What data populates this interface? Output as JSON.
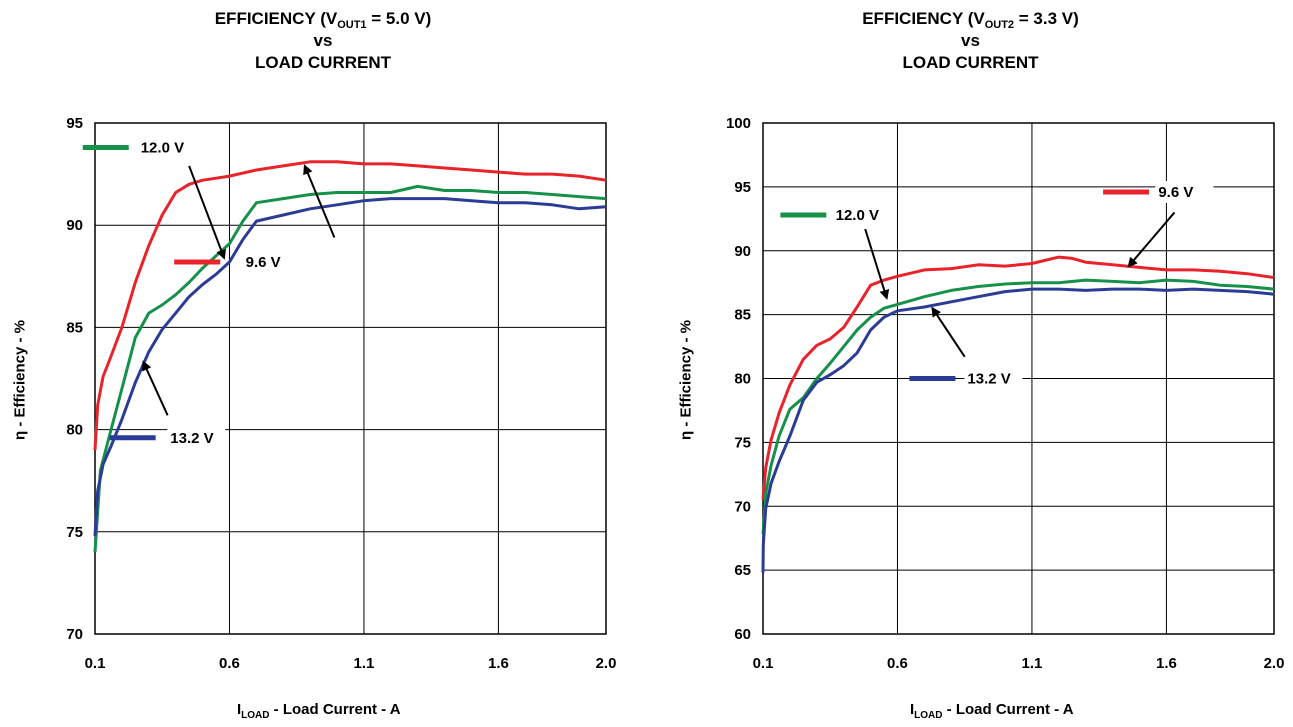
{
  "chart_data": [
    {
      "type": "line",
      "title_parts": [
        "EFFICIENCY (V",
        "OUT1",
        " = 5.0 V)"
      ],
      "title_line2": "vs",
      "title_line3": "LOAD CURRENT",
      "ylabel": "η - Efficiency - %",
      "xlabel_main": "I",
      "xlabel_sub": "LOAD",
      "xlabel_rest": " - Load Current - A",
      "xlim": [
        0.1,
        2.0
      ],
      "ylim": [
        70,
        95
      ],
      "x_ticks": [
        0.1,
        0.6,
        1.1,
        1.6,
        2.0
      ],
      "x_tick_labels": [
        "0.1",
        "0.6",
        "1.1",
        "1.6",
        "2.0"
      ],
      "y_ticks": [
        70,
        75,
        80,
        85,
        90,
        95
      ],
      "y_tick_labels": [
        "70",
        "75",
        "80",
        "85",
        "90",
        "95"
      ],
      "grid": true,
      "series": [
        {
          "name": "9.6 V",
          "color": "#e8232a",
          "x": [
            0.1,
            0.11,
            0.13,
            0.16,
            0.2,
            0.25,
            0.3,
            0.35,
            0.4,
            0.45,
            0.5,
            0.55,
            0.6,
            0.7,
            0.8,
            0.9,
            1.0,
            1.1,
            1.2,
            1.3,
            1.4,
            1.5,
            1.6,
            1.7,
            1.8,
            1.9,
            2.0
          ],
          "y": [
            79.0,
            81.2,
            82.6,
            83.6,
            85.0,
            87.2,
            89.0,
            90.5,
            91.6,
            92.0,
            92.2,
            92.3,
            92.4,
            92.7,
            92.9,
            93.1,
            93.1,
            93.0,
            93.0,
            92.9,
            92.8,
            92.7,
            92.6,
            92.5,
            92.5,
            92.4,
            92.2
          ]
        },
        {
          "name": "12.0 V",
          "color": "#16914a",
          "x": [
            0.1,
            0.12,
            0.15,
            0.2,
            0.25,
            0.3,
            0.35,
            0.4,
            0.45,
            0.5,
            0.55,
            0.6,
            0.65,
            0.7,
            0.8,
            0.9,
            1.0,
            1.1,
            1.2,
            1.3,
            1.4,
            1.5,
            1.6,
            1.7,
            1.8,
            1.9,
            2.0
          ],
          "y": [
            74.0,
            78.0,
            79.5,
            82.0,
            84.5,
            85.7,
            86.1,
            86.6,
            87.2,
            87.9,
            88.5,
            89.1,
            90.2,
            91.1,
            91.3,
            91.5,
            91.6,
            91.6,
            91.6,
            91.9,
            91.7,
            91.7,
            91.6,
            91.6,
            91.5,
            91.4,
            91.3
          ]
        },
        {
          "name": "13.2 V",
          "color": "#2b3c96",
          "x": [
            0.1,
            0.11,
            0.13,
            0.16,
            0.2,
            0.25,
            0.3,
            0.35,
            0.4,
            0.45,
            0.5,
            0.55,
            0.6,
            0.65,
            0.7,
            0.8,
            0.9,
            1.0,
            1.1,
            1.2,
            1.3,
            1.4,
            1.5,
            1.6,
            1.7,
            1.8,
            1.9,
            2.0
          ],
          "y": [
            74.8,
            77.0,
            78.3,
            79.2,
            80.5,
            82.3,
            83.8,
            84.9,
            85.7,
            86.5,
            87.1,
            87.6,
            88.2,
            89.3,
            90.2,
            90.5,
            90.8,
            91.0,
            91.2,
            91.3,
            91.3,
            91.3,
            91.2,
            91.1,
            91.1,
            91.0,
            90.8,
            90.9
          ]
        }
      ],
      "annotations": [
        {
          "text": "12.0 V",
          "series": 1,
          "swatch": [
            0.14,
            93.8
          ],
          "label_at": [
            0.27,
            93.8
          ],
          "arrow_from": [
            0.45,
            92.9
          ],
          "arrow_to": [
            0.58,
            88.4
          ]
        },
        {
          "text": "9.6 V",
          "series": 0,
          "swatch": [
            0.48,
            88.2
          ],
          "label_at": [
            0.66,
            88.2
          ],
          "arrow_from": [
            0.99,
            89.4
          ],
          "arrow_to": [
            0.88,
            92.9
          ]
        },
        {
          "text": "13.2 V",
          "series": 2,
          "swatch": [
            0.24,
            79.6
          ],
          "label_at": [
            0.38,
            79.6
          ],
          "arrow_from": [
            0.37,
            80.7
          ],
          "arrow_to": [
            0.28,
            83.3
          ]
        }
      ]
    },
    {
      "type": "line",
      "title_parts": [
        "EFFICIENCY (V",
        "OUT2",
        " = 3.3 V)"
      ],
      "title_line2": "vs",
      "title_line3": "LOAD CURRENT",
      "ylabel": "η - Efficiency - %",
      "xlabel_main": "I",
      "xlabel_sub": "LOAD",
      "xlabel_rest": " - Load Current - A",
      "xlim": [
        0.1,
        2.0
      ],
      "ylim": [
        60,
        100
      ],
      "x_ticks": [
        0.1,
        0.6,
        1.1,
        1.6,
        2.0
      ],
      "x_tick_labels": [
        "0.1",
        "0.6",
        "1.1",
        "1.6",
        "2.0"
      ],
      "y_ticks": [
        60,
        65,
        70,
        75,
        80,
        85,
        90,
        95,
        100
      ],
      "y_tick_labels": [
        "60",
        "65",
        "70",
        "75",
        "80",
        "85",
        "90",
        "95",
        "100"
      ],
      "grid": true,
      "series": [
        {
          "name": "9.6 V",
          "color": "#e8232a",
          "x": [
            0.1,
            0.11,
            0.13,
            0.16,
            0.2,
            0.25,
            0.3,
            0.35,
            0.4,
            0.45,
            0.5,
            0.55,
            0.6,
            0.7,
            0.8,
            0.9,
            1.0,
            1.1,
            1.2,
            1.25,
            1.3,
            1.4,
            1.5,
            1.6,
            1.7,
            1.8,
            1.9,
            2.0
          ],
          "y": [
            70.5,
            73.0,
            75.2,
            77.3,
            79.5,
            81.5,
            82.6,
            83.1,
            84.0,
            85.6,
            87.3,
            87.7,
            88.0,
            88.5,
            88.6,
            88.9,
            88.8,
            89.0,
            89.5,
            89.4,
            89.1,
            88.9,
            88.7,
            88.5,
            88.5,
            88.4,
            88.2,
            87.9
          ]
        },
        {
          "name": "12.0 V",
          "color": "#16914a",
          "x": [
            0.1,
            0.11,
            0.13,
            0.16,
            0.2,
            0.25,
            0.3,
            0.35,
            0.4,
            0.45,
            0.5,
            0.55,
            0.6,
            0.7,
            0.8,
            0.9,
            1.0,
            1.1,
            1.2,
            1.3,
            1.4,
            1.5,
            1.6,
            1.7,
            1.8,
            1.9,
            2.0
          ],
          "y": [
            67.8,
            71.0,
            73.2,
            75.5,
            77.6,
            78.5,
            80.0,
            81.2,
            82.5,
            83.8,
            84.8,
            85.5,
            85.8,
            86.4,
            86.9,
            87.2,
            87.4,
            87.5,
            87.5,
            87.7,
            87.6,
            87.5,
            87.7,
            87.6,
            87.3,
            87.2,
            87.0
          ]
        },
        {
          "name": "13.2 V",
          "color": "#2b3c96",
          "x": [
            0.1,
            0.101,
            0.11,
            0.13,
            0.16,
            0.2,
            0.25,
            0.3,
            0.35,
            0.4,
            0.45,
            0.5,
            0.55,
            0.6,
            0.7,
            0.8,
            0.9,
            1.0,
            1.1,
            1.2,
            1.3,
            1.4,
            1.5,
            1.6,
            1.7,
            1.8,
            1.9,
            2.0
          ],
          "y": [
            64.8,
            67.0,
            69.8,
            71.8,
            73.5,
            75.5,
            78.3,
            79.7,
            80.3,
            81.0,
            82.0,
            83.8,
            84.8,
            85.3,
            85.6,
            86.0,
            86.4,
            86.8,
            87.0,
            87.0,
            86.9,
            87.0,
            87.0,
            86.9,
            87.0,
            86.9,
            86.8,
            86.6
          ]
        }
      ],
      "annotations": [
        {
          "text": "12.0 V",
          "series": 1,
          "swatch": [
            0.25,
            92.8
          ],
          "label_at": [
            0.37,
            92.8
          ],
          "arrow_from": [
            0.48,
            91.7
          ],
          "arrow_to": [
            0.56,
            86.3
          ]
        },
        {
          "text": "9.6 V",
          "series": 0,
          "swatch": [
            1.45,
            94.6
          ],
          "label_at": [
            1.57,
            94.6
          ],
          "arrow_from": [
            1.63,
            93.0
          ],
          "arrow_to": [
            1.46,
            88.8
          ]
        },
        {
          "text": "13.2 V",
          "series": 2,
          "swatch": [
            0.73,
            80.0
          ],
          "label_at": [
            0.86,
            80.0
          ],
          "arrow_from": [
            0.85,
            81.7
          ],
          "arrow_to": [
            0.73,
            85.5
          ]
        }
      ]
    }
  ]
}
